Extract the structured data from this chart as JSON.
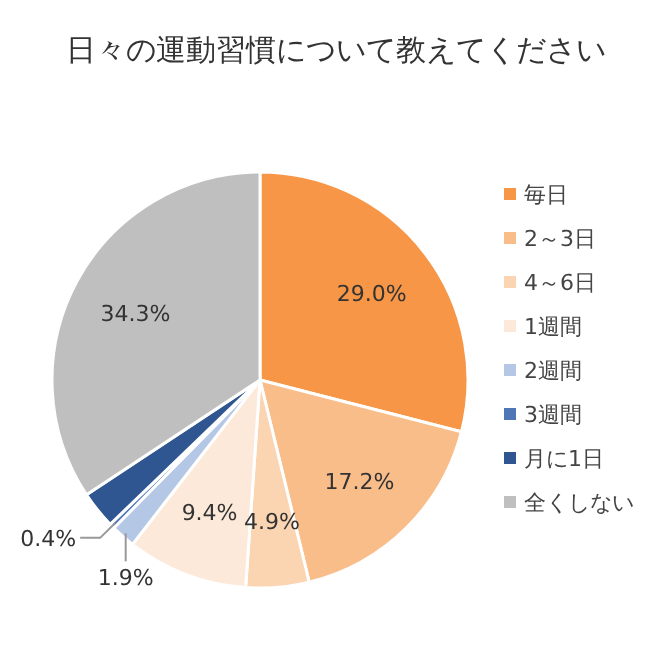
{
  "chart_data": {
    "type": "pie",
    "title": "日々の運動習慣について教えてください",
    "categories": [
      "毎日",
      "2～3日",
      "4～6日",
      "1週間",
      "2週間",
      "3週間",
      "月に1日",
      "全くしない"
    ],
    "values": [
      29.0,
      17.2,
      4.9,
      9.4,
      1.9,
      0.4,
      2.9,
      34.3
    ],
    "value_labels": [
      "29.0%",
      "17.2%",
      "4.9%",
      "9.4%",
      "1.9%",
      "0.4%",
      null,
      "34.3%"
    ],
    "colors": [
      "#f79646",
      "#f9bd8a",
      "#fbd4b2",
      "#fde9d9",
      "#b4c8e6",
      "#4f76b5",
      "#2f5691",
      "#bfbfbf"
    ],
    "legend": "right"
  }
}
